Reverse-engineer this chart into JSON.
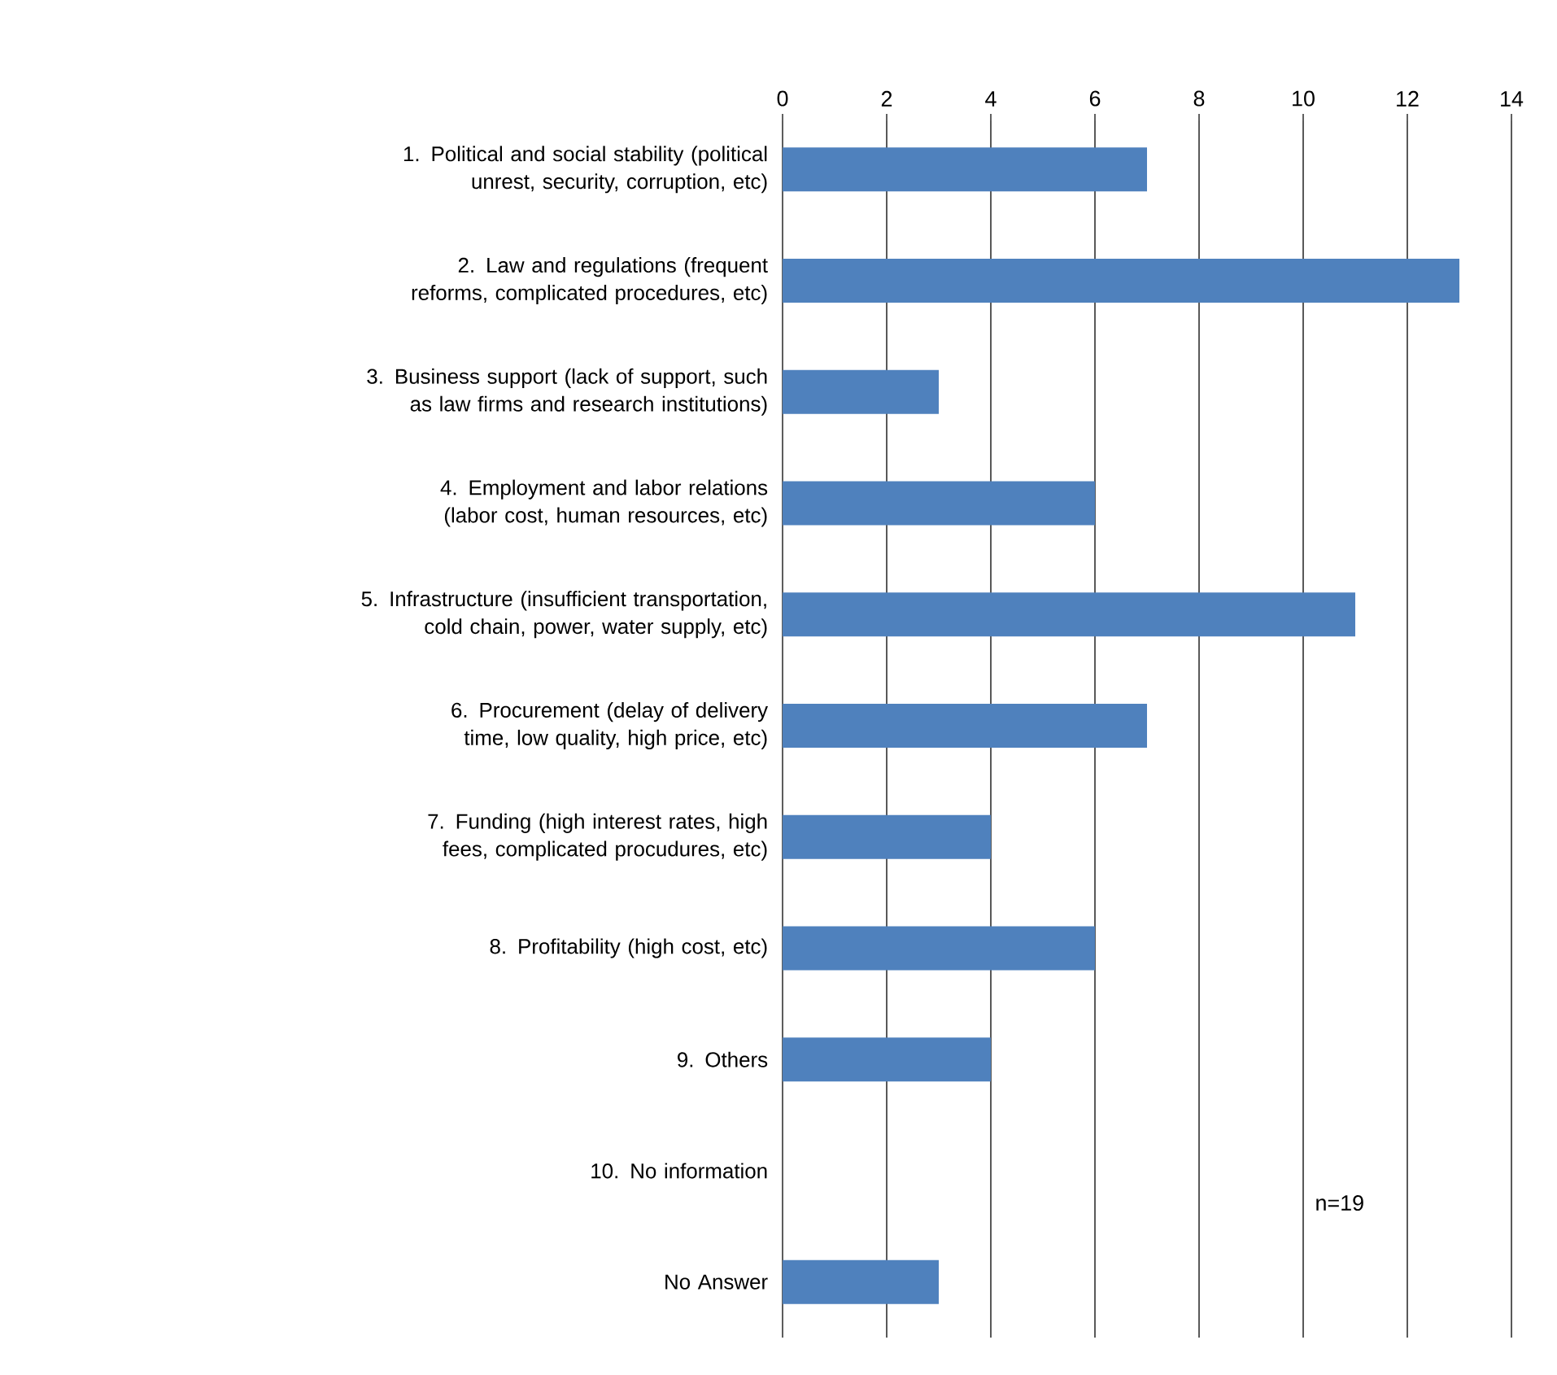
{
  "chart_data": {
    "type": "bar",
    "orientation": "horizontal",
    "categories": [
      "1. Political and social stability (political unrest, security, corruption,  etc)",
      "2. Law and regulations (frequent reforms, complicated procedures, etc)",
      "3. Business support (lack of support, such as law firms and research institutions)",
      "4. Employment and labor relations (labor cost, human resources, etc)",
      "5. Infrastructure (insufficient transportation, cold chain, power, water supply, etc)",
      "6. Procurement  (delay of delivery time, low quality, high price, etc)",
      "7. Funding (high interest rates, high fees, complicated procudures, etc)",
      "8. Profitability (high cost, etc)",
      "9. Others",
      "10. No information",
      "No Answer"
    ],
    "values": [
      7,
      13,
      3,
      6,
      11,
      7,
      4,
      6,
      4,
      0,
      3
    ],
    "color": "#4f81bd",
    "xlim": [
      0,
      14
    ],
    "xticks": [
      0,
      2,
      4,
      6,
      8,
      10,
      12,
      14
    ],
    "grid": "x",
    "annotations": [
      "n=19"
    ]
  }
}
